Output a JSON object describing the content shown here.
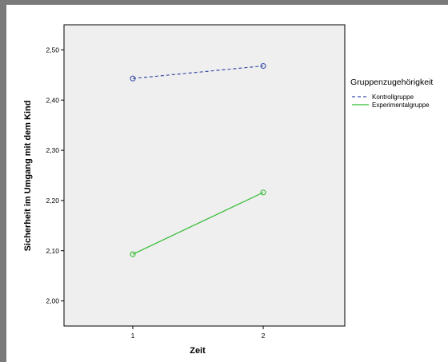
{
  "chart_data": {
    "type": "line",
    "xlabel": "Zeit",
    "ylabel": "Sicherheit im Umgang mit dem Kind",
    "x": [
      "1",
      "2"
    ],
    "ylim": [
      1.95,
      2.55
    ],
    "yticks": [
      "2,00",
      "2,10",
      "2,20",
      "2,30",
      "2,40",
      "2,50"
    ],
    "ytick_values": [
      2.0,
      2.1,
      2.2,
      2.3,
      2.4,
      2.5
    ],
    "grid": false,
    "legend_placement": "right",
    "legend_title": "Gruppenzugehörigkeit",
    "series": [
      {
        "name": "Kontrollgruppe",
        "values": [
          2.443,
          2.468
        ],
        "color": "#3a4fa8",
        "dash": true
      },
      {
        "name": "Experimentalgruppe",
        "values": [
          2.093,
          2.216
        ],
        "color": "#33bb33",
        "dash": false
      }
    ]
  },
  "colors": {
    "plot_background": "#efefef",
    "frame": "#7a7a7a"
  }
}
